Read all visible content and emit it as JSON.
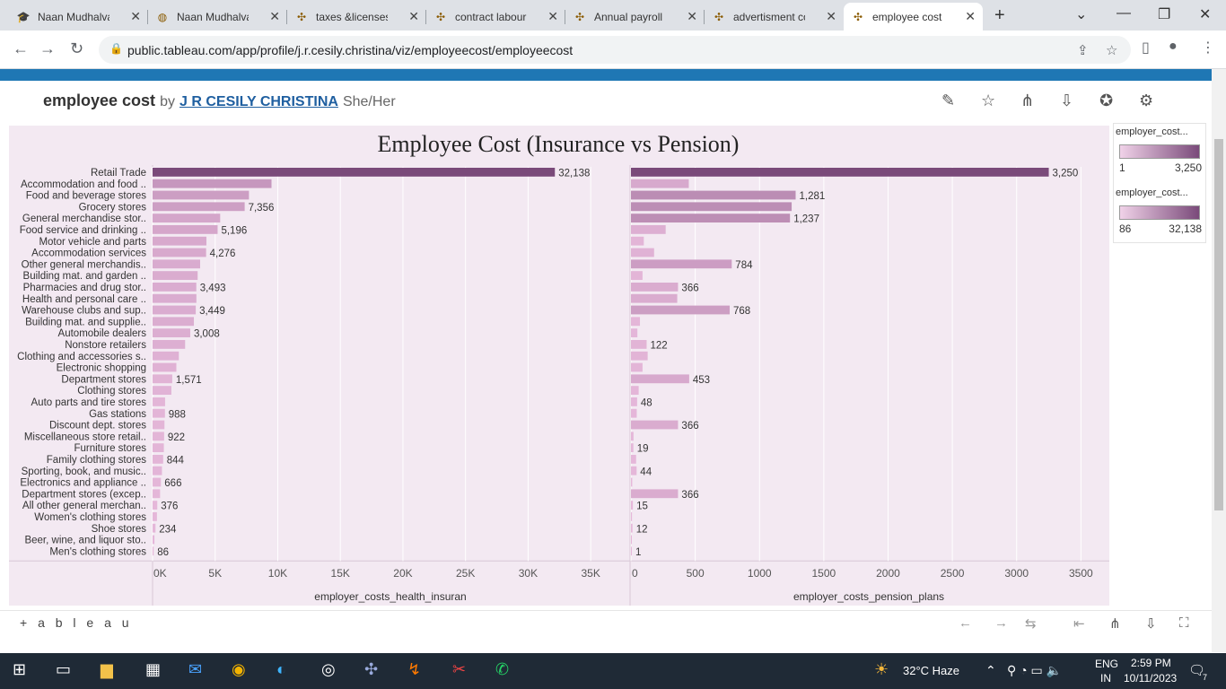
{
  "browser": {
    "tabs": [
      {
        "title": "Naan Mudhalvan",
        "icon": "graduation-icon"
      },
      {
        "title": "Naan Mudhalvan",
        "icon": "globe-icon"
      },
      {
        "title": "taxes &licenses |",
        "icon": "tableau-icon"
      },
      {
        "title": "contract labour |",
        "icon": "tableau-icon"
      },
      {
        "title": "Annual payroll |",
        "icon": "tableau-icon"
      },
      {
        "title": "advertisment co",
        "icon": "tableau-icon"
      },
      {
        "title": "employee cost |",
        "icon": "tableau-icon",
        "active": true
      }
    ],
    "url": "public.tableau.com/app/profile/j.r.cesily.christina/viz/employeecost/employeecost"
  },
  "viz_header": {
    "title": "employee cost",
    "by": "by",
    "author": "J R CESILY CHRISTINA",
    "pronoun": "She/Her"
  },
  "chart_data": {
    "type": "bar",
    "title": "Employee Cost (Insurance vs Pension)",
    "orientation": "horizontal",
    "categories": [
      "Retail Trade",
      "Accommodation and food ..",
      "Food and beverage stores",
      "Grocery stores",
      "General merchandise stor..",
      "Food service and drinking ..",
      "Motor vehicle and parts",
      "Accommodation services",
      "Other general merchandis..",
      "Building mat. and garden ..",
      "Pharmacies and drug stor..",
      "Health and personal care ..",
      "Warehouse clubs and sup..",
      "Building mat. and supplie..",
      "Automobile dealers",
      "Nonstore retailers",
      "Clothing and accessories s..",
      "Electronic shopping",
      "Department stores",
      "Clothing stores",
      "Auto parts and tire stores",
      "Gas stations",
      "Discount dept. stores",
      "Miscellaneous store retail..",
      "Furniture stores",
      "Family clothing stores",
      "Sporting, book, and music..",
      "Electronics and appliance ..",
      "Department stores (excep..",
      "All other general merchan..",
      "Women's clothing stores",
      "Shoe stores",
      "Beer, wine, and liquor sto..",
      "Men's clothing stores"
    ],
    "series": [
      {
        "name": "employer_costs_health_insurance",
        "axis_title": "employer_costs_health_insuran",
        "values": [
          32138,
          9500,
          7700,
          7356,
          5400,
          5196,
          4300,
          4276,
          3800,
          3600,
          3493,
          3500,
          3449,
          3300,
          3008,
          2600,
          2100,
          1900,
          1571,
          1500,
          1000,
          988,
          950,
          922,
          900,
          844,
          750,
          666,
          600,
          376,
          350,
          234,
          150,
          86
        ],
        "labels": [
          "32,138",
          "",
          "",
          "7,356",
          "",
          "5,196",
          "",
          "4,276",
          "",
          "",
          "3,493",
          "",
          "3,449",
          "",
          "3,008",
          "",
          "",
          "",
          "1,571",
          "",
          "",
          "988",
          "",
          "922",
          "",
          "844",
          "",
          "666",
          "",
          "376",
          "",
          "234",
          "",
          "86"
        ],
        "xlim": [
          0,
          38000
        ],
        "ticks": [
          0,
          5000,
          10000,
          15000,
          20000,
          25000,
          30000,
          35000
        ],
        "tick_labels": [
          "0K",
          "5K",
          "10K",
          "15K",
          "20K",
          "25K",
          "30K",
          "35K"
        ]
      },
      {
        "name": "employer_costs_pension_plans",
        "axis_title": "employer_costs_pension_plans",
        "values": [
          3250,
          450,
          1281,
          1250,
          1237,
          270,
          100,
          180,
          784,
          90,
          366,
          360,
          768,
          70,
          50,
          122,
          130,
          90,
          453,
          60,
          48,
          45,
          366,
          20,
          19,
          40,
          44,
          10,
          366,
          15,
          8,
          12,
          5,
          1
        ],
        "labels": [
          "3,250",
          "",
          "1,281",
          "",
          "1,237",
          "",
          "",
          "",
          "784",
          "",
          "366",
          "",
          "768",
          "",
          "",
          "122",
          "",
          "",
          "453",
          "",
          "48",
          "",
          "366",
          "",
          "19",
          "",
          "44",
          "",
          "366",
          "15",
          "",
          "12",
          "",
          "1"
        ],
        "xlim": [
          0,
          3700
        ],
        "ticks": [
          0,
          500,
          1000,
          1500,
          2000,
          2500,
          3000,
          3500
        ],
        "tick_labels": [
          "0",
          "500",
          "1000",
          "1500",
          "2000",
          "2500",
          "3000",
          "3500"
        ]
      }
    ],
    "colors": {
      "light": "#e6b8da",
      "dark": "#7a4a7a",
      "grid": "#ffffff",
      "bg": "#f3e9f2"
    },
    "legend_position": "right"
  },
  "legends": [
    {
      "title": "employer_cost...",
      "min": "1",
      "max": "3,250"
    },
    {
      "title": "employer_cost...",
      "min": "86",
      "max": "32,138"
    }
  ],
  "footer": {
    "logo": "+ a b l e a u"
  },
  "taskbar": {
    "weather": "32°C  Haze",
    "lang": "ENG",
    "region": "IN",
    "time": "2:59 PM",
    "date": "10/11/2023",
    "notif": "7"
  }
}
